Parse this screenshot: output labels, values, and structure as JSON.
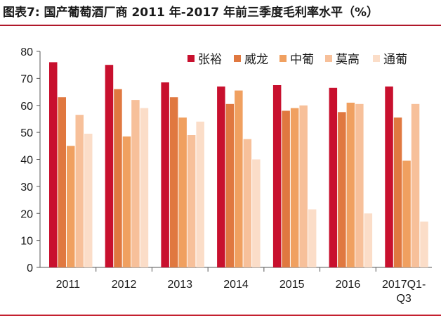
{
  "title": "图表7:  国产葡萄酒厂商 2011 年-2017 年前三季度毛利率水平（%）",
  "chart_data": {
    "type": "bar",
    "title": "图表7:  国产葡萄酒厂商 2011 年-2017 年前三季度毛利率水平（%）",
    "categories": [
      [
        "2011"
      ],
      [
        "2012"
      ],
      [
        "2013"
      ],
      [
        "2014"
      ],
      [
        "2015"
      ],
      [
        "2016"
      ],
      [
        "2017Q1-",
        "Q3"
      ]
    ],
    "ylim": [
      0,
      80
    ],
    "yticks": [
      0,
      10,
      20,
      30,
      40,
      50,
      60,
      70,
      80
    ],
    "grid": false,
    "legend": "top-right",
    "series": [
      {
        "name": "张裕",
        "color": "#c8102e",
        "values": [
          76,
          75,
          68.5,
          67,
          67.5,
          66.5,
          67
        ]
      },
      {
        "name": "威龙",
        "color": "#e07840",
        "values": [
          63,
          66,
          63,
          60.5,
          58,
          57.5,
          55.5
        ]
      },
      {
        "name": "中葡",
        "color": "#f0a060",
        "values": [
          45,
          48.5,
          55.5,
          65.5,
          59,
          61,
          39.5
        ]
      },
      {
        "name": "莫高",
        "color": "#f7c09a",
        "values": [
          56.5,
          62,
          49,
          47.5,
          60,
          60.5,
          60.5
        ]
      },
      {
        "name": "通葡",
        "color": "#fbddc8",
        "values": [
          49.5,
          59,
          54,
          40,
          21.5,
          20,
          17
        ]
      }
    ]
  }
}
